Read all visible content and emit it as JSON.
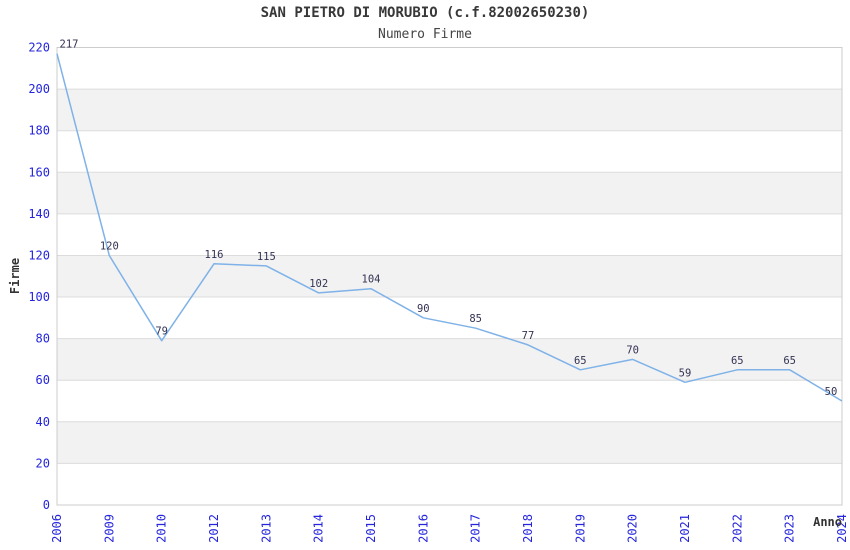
{
  "title": "SAN PIETRO DI MORUBIO (c.f.82002650230)",
  "subtitle": "Numero Firme",
  "chart_data": {
    "type": "line",
    "title": "SAN PIETRO DI MORUBIO (c.f.82002650230)",
    "subtitle": "Numero Firme",
    "xlabel": "Anno",
    "ylabel": "Firme",
    "x": [
      "2006",
      "2009",
      "2010",
      "2012",
      "2013",
      "2014",
      "2015",
      "2016",
      "2017",
      "2018",
      "2019",
      "2020",
      "2021",
      "2022",
      "2023",
      "2024"
    ],
    "values": [
      217,
      120,
      79,
      116,
      115,
      102,
      104,
      90,
      85,
      77,
      65,
      70,
      59,
      65,
      65,
      50
    ],
    "ylim": [
      0,
      220
    ],
    "ytick_step": 20,
    "yticks": [
      0,
      20,
      40,
      60,
      80,
      100,
      120,
      140,
      160,
      180,
      200,
      220
    ],
    "grid": true,
    "legend": "none",
    "banding": "alternating-horizontal",
    "colors": {
      "line": "#7FB2E8",
      "axis_text": "#2525DD",
      "data_label": "#333355",
      "band": "#F2F2F2",
      "gridline": "#DCDCDC",
      "border": "#CCCCCC",
      "title_text": "#383838"
    }
  }
}
